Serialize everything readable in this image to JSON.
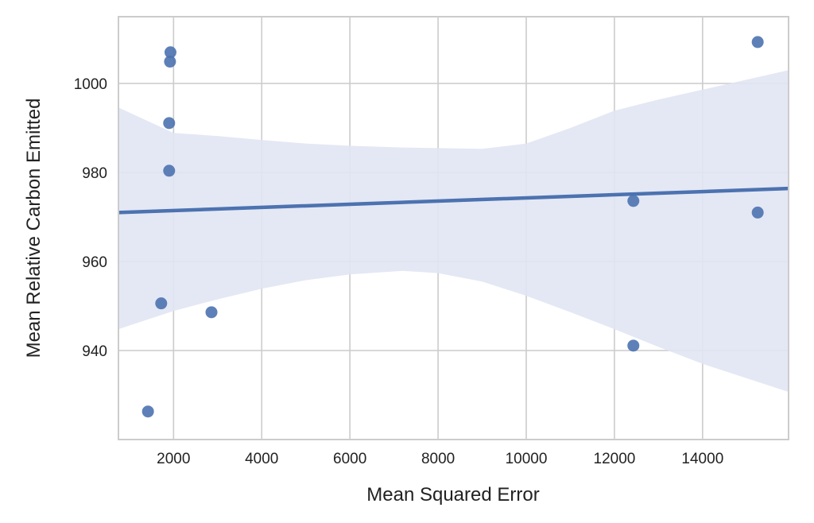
{
  "chart_data": {
    "type": "scatter",
    "xlabel": "Mean Squared Error",
    "ylabel": "Mean Relative Carbon Emitted",
    "xlim": [
      750,
      15950
    ],
    "ylim": [
      920,
      1015
    ],
    "xticks": [
      2000,
      4000,
      6000,
      8000,
      10000,
      12000,
      14000
    ],
    "yticks": [
      940,
      960,
      980,
      1000
    ],
    "xtick_labels": [
      "2000",
      "4000",
      "6000",
      "8000",
      "10000",
      "12000",
      "14000"
    ],
    "ytick_labels": [
      "940",
      "960",
      "980",
      "1000"
    ],
    "grid": true,
    "points": [
      {
        "x": 1420,
        "y": 926.3
      },
      {
        "x": 1720,
        "y": 950.6
      },
      {
        "x": 1900,
        "y": 980.4
      },
      {
        "x": 1900,
        "y": 991.1
      },
      {
        "x": 1920,
        "y": 1004.9
      },
      {
        "x": 1930,
        "y": 1007.0
      },
      {
        "x": 2860,
        "y": 948.6
      },
      {
        "x": 12430,
        "y": 973.6
      },
      {
        "x": 12430,
        "y": 941.1
      },
      {
        "x": 15250,
        "y": 1009.3
      },
      {
        "x": 15250,
        "y": 971.0
      }
    ],
    "regression_line": [
      {
        "x": 750,
        "y": 971.0
      },
      {
        "x": 15950,
        "y": 976.4
      }
    ],
    "confidence_band": {
      "upper": [
        {
          "x": 750,
          "y": 994.6
        },
        {
          "x": 2000,
          "y": 988.9
        },
        {
          "x": 3000,
          "y": 988.2
        },
        {
          "x": 4000,
          "y": 987.3
        },
        {
          "x": 5000,
          "y": 986.5
        },
        {
          "x": 6000,
          "y": 986.0
        },
        {
          "x": 7200,
          "y": 985.6
        },
        {
          "x": 9000,
          "y": 985.3
        },
        {
          "x": 10000,
          "y": 986.5
        },
        {
          "x": 11000,
          "y": 990.0
        },
        {
          "x": 12000,
          "y": 993.9
        },
        {
          "x": 13000,
          "y": 996.4
        },
        {
          "x": 14000,
          "y": 998.6
        },
        {
          "x": 15950,
          "y": 1003.0
        }
      ],
      "lower": [
        {
          "x": 750,
          "y": 944.8
        },
        {
          "x": 2000,
          "y": 948.9
        },
        {
          "x": 3000,
          "y": 951.5
        },
        {
          "x": 4000,
          "y": 953.9
        },
        {
          "x": 5000,
          "y": 955.8
        },
        {
          "x": 6000,
          "y": 957.1
        },
        {
          "x": 7200,
          "y": 957.9
        },
        {
          "x": 8000,
          "y": 957.4
        },
        {
          "x": 9000,
          "y": 955.5
        },
        {
          "x": 10000,
          "y": 952.3
        },
        {
          "x": 11000,
          "y": 948.6
        },
        {
          "x": 12000,
          "y": 944.8
        },
        {
          "x": 13000,
          "y": 940.8
        },
        {
          "x": 14000,
          "y": 937.0
        },
        {
          "x": 15950,
          "y": 930.7
        }
      ]
    },
    "colors": {
      "points": "#4c72b0",
      "line": "#4c72b0",
      "band": "#e1e6f3",
      "grid": "#cccccc",
      "axes": "#cccccc"
    }
  }
}
